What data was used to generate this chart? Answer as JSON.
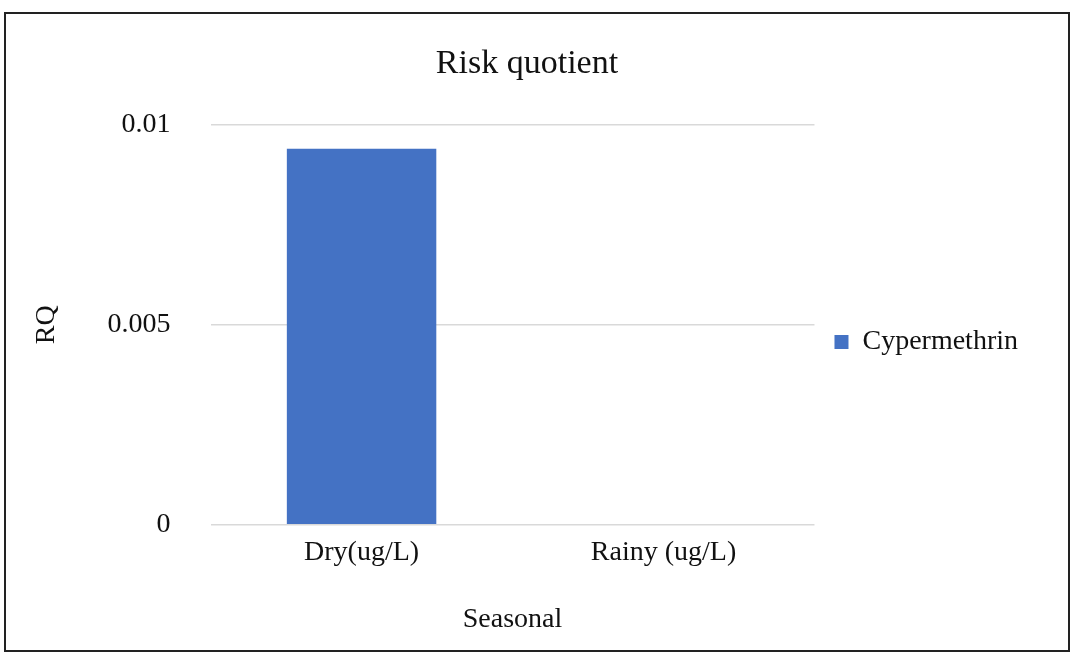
{
  "chart_data": {
    "type": "bar",
    "title": "Risk quotient",
    "xlabel": "Seasonal",
    "ylabel": "RQ",
    "categories": [
      "Dry(ug/L)",
      "Rainy (ug/L)"
    ],
    "series": [
      {
        "name": "Cypermethrin",
        "color": "#4472c4",
        "values": [
          0.0094,
          0
        ]
      }
    ],
    "ylim": [
      0,
      0.01
    ],
    "yticks": [
      0,
      0.005,
      0.01
    ],
    "grid": "y",
    "legend": "right"
  }
}
